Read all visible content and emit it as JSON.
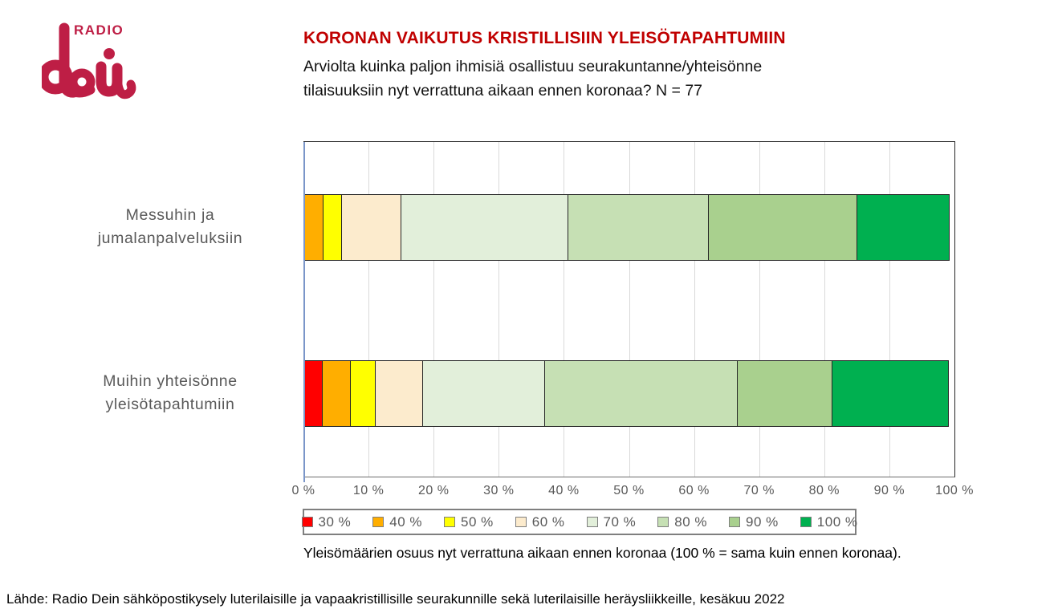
{
  "logo": {
    "radio_text": "RADIO",
    "script_text": "dei",
    "color": "#BE1E45"
  },
  "header": {
    "title": "KORONAN VAIKUTUS KRISTILLISIIN YLEISÖTAPAHTUMIIN",
    "subtitle": "Arviolta kuinka paljon ihmisiä osallistuu seurakuntanne/yhteisönne\ntilaisuuksiin nyt verrattuna aikaan ennen koronaa? N = 77"
  },
  "chart_data": {
    "type": "bar",
    "orientation": "horizontal",
    "stacked": true,
    "grid": true,
    "legend_position": "bottom",
    "categories": [
      "Messuhin ja\njumalanpalveluksiin",
      "Muihin yhteisönne\nyleisötapahtumiin"
    ],
    "series": [
      {
        "name": "30 %",
        "color": "#FF0000",
        "values": [
          0,
          3.0
        ]
      },
      {
        "name": "40 %",
        "color": "#FFAE00",
        "values": [
          3.1,
          4.4
        ]
      },
      {
        "name": "50 %",
        "color": "#FFFF00",
        "values": [
          3.0,
          3.9
        ]
      },
      {
        "name": "60 %",
        "color": "#FCEBCD",
        "values": [
          9.2,
          7.4
        ]
      },
      {
        "name": "70 %",
        "color": "#E2EFDA",
        "values": [
          25.8,
          18.9
        ]
      },
      {
        "name": "80 %",
        "color": "#C6E0B4",
        "values": [
          21.7,
          29.7
        ]
      },
      {
        "name": "90 %",
        "color": "#A9D08E",
        "values": [
          22.9,
          14.7
        ]
      },
      {
        "name": "100 %",
        "color": "#00B050",
        "values": [
          14.3,
          18.0
        ]
      }
    ],
    "x_axis": {
      "min": 0,
      "max": 100,
      "tick_step": 10,
      "ticks": [
        "0 %",
        "10 %",
        "20 %",
        "30 %",
        "40 %",
        "50 %",
        "60 %",
        "70 %",
        "80 %",
        "90 %",
        "100 %"
      ]
    }
  },
  "caption": "Yleisömäärien osuus nyt verrattuna aikaan ennen koronaa (100 % = sama kuin ennen koronaa).",
  "footer": "Lähde: Radio Dein sähköpostikysely luterilaisille ja vapaakristillisille seurakunnille sekä luterilaisille heräysliikkeille, kesäkuu 2022"
}
